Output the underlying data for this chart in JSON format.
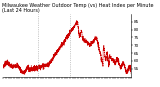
{
  "title": "Milwaukee Weather Outdoor Temp (vs) Heat Index per Minute (Last 24 Hours)",
  "line_color": "#cc0000",
  "bg_color": "#ffffff",
  "plot_bg_color": "#ffffff",
  "vline_color": "#999999",
  "ylim": [
    50,
    90
  ],
  "yticks": [
    55,
    60,
    65,
    70,
    75,
    80,
    85
  ],
  "vline_positions": [
    0.27,
    0.52
  ],
  "n_points": 1440,
  "title_fontsize": 3.5,
  "tick_fontsize": 3.0,
  "linewidth": 0.6
}
